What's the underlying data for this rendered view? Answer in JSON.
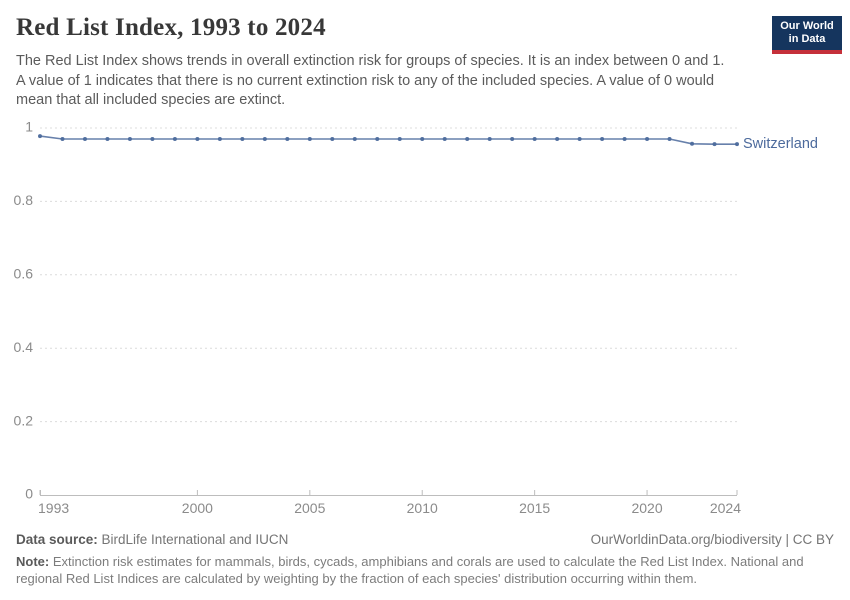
{
  "header": {
    "title": "Red List Index, 1993 to 2024",
    "subtitle_lines": [
      "The Red List Index shows trends in overall extinction risk for groups of species. It is an index between 0 and 1.",
      "A value of 1 indicates that there is no current extinction risk to any of the included species. A value of 0 would",
      "mean that all included species are extinct."
    ]
  },
  "logo": {
    "line1": "Our World",
    "line2": "in Data",
    "bg_color": "#15355E",
    "stripe_color": "#C5303A"
  },
  "chart_data": {
    "type": "line",
    "title": "Red List Index, 1993 to 2024",
    "xlabel": "",
    "ylabel": "",
    "xlim": [
      1993,
      2024
    ],
    "ylim": [
      0,
      1
    ],
    "grid": "dashed-horizontal",
    "legend_position": "end-of-line-label",
    "xticks": [
      1993,
      2000,
      2005,
      2010,
      2015,
      2020,
      2024
    ],
    "yticks": [
      1,
      0.8,
      0.6,
      0.4,
      0.2,
      0
    ],
    "x": [
      1993,
      1994,
      1995,
      1996,
      1997,
      1998,
      1999,
      2000,
      2001,
      2002,
      2003,
      2004,
      2005,
      2006,
      2007,
      2008,
      2009,
      2010,
      2011,
      2012,
      2013,
      2014,
      2015,
      2016,
      2017,
      2018,
      2019,
      2020,
      2021,
      2022,
      2023,
      2024
    ],
    "series": [
      {
        "name": "Switzerland",
        "color": "#4C6A9C",
        "values": [
          0.978,
          0.97,
          0.97,
          0.97,
          0.97,
          0.97,
          0.97,
          0.97,
          0.97,
          0.97,
          0.97,
          0.97,
          0.97,
          0.97,
          0.97,
          0.97,
          0.97,
          0.97,
          0.97,
          0.97,
          0.97,
          0.97,
          0.97,
          0.97,
          0.97,
          0.97,
          0.97,
          0.97,
          0.97,
          0.957,
          0.956,
          0.956
        ]
      }
    ],
    "colors": {
      "gridline": "#dcdcdc",
      "axis": "#bdbdbd",
      "tick_label": "#8b8b8b"
    }
  },
  "footer": {
    "data_source_label": "Data source:",
    "data_source_value": " BirdLife International and IUCN",
    "rights": "OurWorldinData.org/biodiversity | CC BY",
    "note_label": "Note:",
    "note_line1": " Extinction risk estimates for mammals, birds, cycads, amphibians and corals are used to calculate the Red List Index. National and",
    "note_line2": "regional Red List Indices are calculated by weighting by the fraction of each species' distribution occurring within them."
  }
}
